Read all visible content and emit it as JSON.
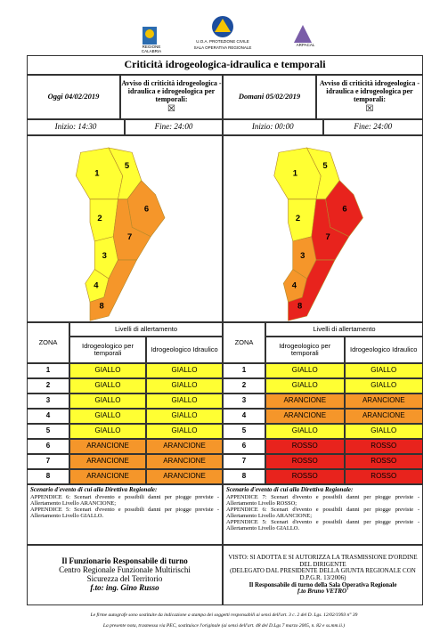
{
  "header": {
    "logos": [
      "REGIONE CALABRIA",
      "U.O.A. PROTEZIONE CIVILE",
      "SALA OPERATIVA REGIONALE",
      "ARPACAL"
    ]
  },
  "title": "Criticità idrogeologica-idraulica e temporali",
  "panels": [
    {
      "date": "Oggi 04/02/2019",
      "avviso": "Avviso di criticità idrogeologica - idraulica e idrogeologica per temporali:",
      "mark": "☒",
      "inizio": "Inizio: 14:30",
      "fine": "Fine: 24:00",
      "table": {
        "zona": "ZONA",
        "livelli": "Livelli di allertamento",
        "col1": "Idrogeologico per temporali",
        "col2": "Idrogeologico Idraulico",
        "rows": [
          {
            "zona": "1",
            "col1": "GIALLO",
            "col2": "GIALLO",
            "color": "#ffff33"
          },
          {
            "zona": "2",
            "col1": "GIALLO",
            "col2": "GIALLO",
            "color": "#ffff33"
          },
          {
            "zona": "3",
            "col1": "GIALLO",
            "col2": "GIALLO",
            "color": "#ffff33"
          },
          {
            "zona": "4",
            "col1": "GIALLO",
            "col2": "GIALLO",
            "color": "#ffff33"
          },
          {
            "zona": "5",
            "col1": "GIALLO",
            "col2": "GIALLO",
            "color": "#ffff33"
          },
          {
            "zona": "6",
            "col1": "ARANCIONE",
            "col2": "ARANCIONE",
            "color": "#f5962a"
          },
          {
            "zona": "7",
            "col1": "ARANCIONE",
            "col2": "ARANCIONE",
            "color": "#f5962a"
          },
          {
            "zona": "8",
            "col1": "ARANCIONE",
            "col2": "ARANCIONE",
            "color": "#f5962a"
          }
        ]
      },
      "scenario": {
        "title": "Scenario d'evento di cui alla Direttiva Regionale:",
        "lines": [
          "APPENDICE 6: Scenari d'evento e possibili danni per piogge previste - Allertamento Livello ARANCIONE;",
          "APPENDICE 5: Scenari d'evento e possibili danni per piogge previste - Allertamento Livello GIALLO."
        ]
      }
    },
    {
      "date": "Domani 05/02/2019",
      "avviso": "Avviso di criticità idrogeologica - idraulica e idrogeologica per temporali:",
      "mark": "☒",
      "inizio": "Inizio: 00:00",
      "fine": "Fine: 24:00",
      "table": {
        "zona": "ZONA",
        "livelli": "Livelli di allertamento",
        "col1": "Idrogeologico per temporali",
        "col2": "Idrogeologico Idraulico",
        "rows": [
          {
            "zona": "1",
            "col1": "GIALLO",
            "col2": "GIALLO",
            "color": "#ffff33"
          },
          {
            "zona": "2",
            "col1": "GIALLO",
            "col2": "GIALLO",
            "color": "#ffff33"
          },
          {
            "zona": "3",
            "col1": "ARANCIONE",
            "col2": "ARANCIONE",
            "color": "#f5962a"
          },
          {
            "zona": "4",
            "col1": "ARANCIONE",
            "col2": "ARANCIONE",
            "color": "#f5962a"
          },
          {
            "zona": "5",
            "col1": "GIALLO",
            "col2": "GIALLO",
            "color": "#ffff33"
          },
          {
            "zona": "6",
            "col1": "ROSSO",
            "col2": "ROSSO",
            "color": "#e8231d"
          },
          {
            "zona": "7",
            "col1": "ROSSO",
            "col2": "ROSSO",
            "color": "#e8231d"
          },
          {
            "zona": "8",
            "col1": "ROSSO",
            "col2": "ROSSO",
            "color": "#e8231d"
          }
        ]
      },
      "scenario": {
        "title": "Scenario d'evento di cui alla Direttiva Regionale:",
        "lines": [
          "APPENDICE 7: Scenari d'evento e possibili danni per piogge previste - Allertamento Livello ROSSO;",
          "APPENDICE 6: Scenari d'evento e possibili danni per piogge previste - Allertamento Livello ARANCIONE;",
          "APPENDICE 5: Scenari d'evento e possibili danni per piogge previste - Allertamento Livello GIALLO."
        ]
      }
    }
  ],
  "footer": {
    "left": [
      "Il Funzionario Responsabile di turno",
      "Centro Regionale Funzionale Multirischi",
      "Sicurezza del Territorio",
      "f.to: ing. Gino Russo"
    ],
    "right": [
      "VISTO: SI ADOTTA E SI AUTORIZZA LA TRASMISSIONE D'ORDINE DEL DIRIGENTE",
      "(DELEGATO DAL PRESIDENTE DELLA GIUNTA REGIONALE CON D.P.G.R. 13/2006)",
      "Il Responsabile di turno della Sala Operativa Regionale",
      "f.to Bruno VETRO'"
    ]
  },
  "notes": [
    "Le firme autografe sono sostituite da indicazione a stampa dei soggetti responsabili ai sensi dell'art. 3 c. 2 del D. Lgs. 12/02/1993 n° 39",
    "La presente nota, trasmessa via PEC, sostituisce l'originale (ai sensi dell'art. 48 del D.Lgs 7 marzo 2005, n. 82 e ss.mm.ii.)"
  ]
}
